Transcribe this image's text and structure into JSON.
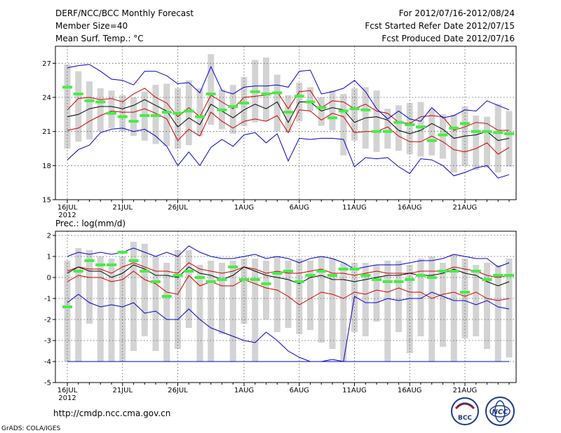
{
  "header": {
    "title": "DERF/NCC/BCC Monthly Forecast",
    "member_size": "Member Size=40",
    "variable": "Mean Surf. Temp.: °C",
    "period": "For 2012/07/16-2012/08/24",
    "fcst_started": "Fcst Started Refer Date 2012/07/15",
    "fcst_produced": "Fcst Produced Date 2012/07/16"
  },
  "footer": {
    "url": "http://cmdp.ncc.cma.gov.cn",
    "grads": "GrADS: COLA/IGES",
    "logo_bcc": "BCC",
    "logo_ncc": "NCC"
  },
  "colors": {
    "box": "#d3d3d3",
    "median": "#000000",
    "band": "#cc0000",
    "range": "#0000cc",
    "obs": "#44ee44",
    "grid": "#555555"
  },
  "chart_data": [
    {
      "type": "line",
      "title": "Mean Surf. Temp.: °C",
      "ylim": [
        15,
        28.5
      ],
      "yticks": [
        15,
        18,
        21,
        24,
        27
      ],
      "xtick_labels": [
        "16JUL",
        "21JUL",
        "26JUL",
        "1AUG",
        "6AUG",
        "11AUG",
        "16AUG",
        "21AUG"
      ],
      "xtick_sub": "2012",
      "xtick_index": [
        0,
        5,
        10,
        16,
        21,
        26,
        31,
        36
      ],
      "days": 40,
      "series": [
        {
          "name": "max",
          "values": [
            18.5,
            19.4,
            19.8,
            20.9,
            21.2,
            21.3,
            21.0,
            21.2,
            20.6,
            19.7,
            18.0,
            19.2,
            18.0,
            19.6,
            20.3,
            19.7,
            20.7,
            20.9,
            20.0,
            20.8,
            18.4,
            20.4,
            20.3,
            20.4,
            20.4,
            20.3,
            17.9,
            18.7,
            18.6,
            18.7,
            17.9,
            17.3,
            18.6,
            18.5,
            18.0,
            17.1,
            17.4,
            17.8,
            18.0,
            16.9,
            17.2
          ]
        },
        {
          "name": "p_low",
          "values": [
            21.1,
            21.3,
            21.9,
            22.4,
            22.8,
            22.7,
            22.7,
            23.0,
            22.6,
            22.1,
            20.2,
            21.2,
            20.6,
            22.7,
            21.9,
            21.3,
            21.9,
            22.1,
            21.9,
            22.4,
            20.9,
            22.9,
            22.8,
            22.0,
            22.6,
            22.3,
            20.9,
            21.0,
            21.0,
            21.4,
            20.6,
            20.1,
            20.1,
            20.6,
            20.1,
            19.4,
            19.2,
            19.5,
            20.0,
            19.0,
            19.6
          ]
        },
        {
          "name": "median",
          "values": [
            22.3,
            22.5,
            23.0,
            23.2,
            23.2,
            23.0,
            23.3,
            23.8,
            23.3,
            22.8,
            21.4,
            22.2,
            21.6,
            23.4,
            22.8,
            22.2,
            22.9,
            23.4,
            23.0,
            23.6,
            21.8,
            23.6,
            23.6,
            22.8,
            23.1,
            22.9,
            21.8,
            22.2,
            22.3,
            22.0,
            21.1,
            20.8,
            21.1,
            21.7,
            21.2,
            20.4,
            20.6,
            20.7,
            21.0,
            20.2,
            20.4
          ]
        },
        {
          "name": "p_high",
          "values": [
            22.9,
            23.9,
            24.0,
            23.8,
            23.9,
            23.6,
            24.3,
            24.8,
            24.0,
            23.5,
            22.3,
            23.1,
            22.3,
            24.2,
            23.6,
            23.0,
            24.0,
            24.1,
            24.2,
            24.5,
            23.0,
            24.5,
            24.6,
            23.1,
            23.7,
            23.6,
            23.0,
            23.4,
            22.8,
            22.6,
            21.8,
            21.7,
            22.3,
            22.4,
            22.3,
            21.1,
            21.4,
            21.8,
            21.7,
            21.1,
            21.1
          ]
        },
        {
          "name": "min",
          "values": [
            26.6,
            26.8,
            26.9,
            26.3,
            25.6,
            25.5,
            25.1,
            26.3,
            26.3,
            25.9,
            25.2,
            25.3,
            24.4,
            26.7,
            24.6,
            24.3,
            24.9,
            25.0,
            25.0,
            25.1,
            24.9,
            26.3,
            26.4,
            24.3,
            24.5,
            24.8,
            25.5,
            24.5,
            23.0,
            22.1,
            22.8,
            22.1,
            21.9,
            23.1,
            22.2,
            22.4,
            22.9,
            22.8,
            23.7,
            23.3,
            22.9
          ]
        }
      ],
      "boxes": [
        [
          19.5,
          26.9
        ],
        [
          20.1,
          26.3
        ],
        [
          20.3,
          25.4
        ],
        [
          21.0,
          24.8
        ],
        [
          21.3,
          24.6
        ],
        [
          21.0,
          24.2
        ],
        [
          20.6,
          24.0
        ],
        [
          20.2,
          24.5
        ],
        [
          19.9,
          25.1
        ],
        [
          19.7,
          25.2
        ],
        [
          19.5,
          24.8
        ],
        [
          19.8,
          25.5
        ],
        [
          20.6,
          24.8
        ],
        [
          21.6,
          27.8
        ],
        [
          21.2,
          24.7
        ],
        [
          20.8,
          25.1
        ],
        [
          21.5,
          25.8
        ],
        [
          21.8,
          27.3
        ],
        [
          21.9,
          27.5
        ],
        [
          21.0,
          26.0
        ],
        [
          20.9,
          24.2
        ],
        [
          21.9,
          25.3
        ],
        [
          22.8,
          24.9
        ],
        [
          21.5,
          24.0
        ],
        [
          21.1,
          24.6
        ],
        [
          18.9,
          24.3
        ],
        [
          20.2,
          24.8
        ],
        [
          19.5,
          24.9
        ],
        [
          19.2,
          24.6
        ],
        [
          19.5,
          23.0
        ],
        [
          19.3,
          23.3
        ],
        [
          19.0,
          23.5
        ],
        [
          18.8,
          23.6
        ],
        [
          18.9,
          23.0
        ],
        [
          18.6,
          22.5
        ],
        [
          17.4,
          22.5
        ],
        [
          18.0,
          23.2
        ],
        [
          17.6,
          22.4
        ],
        [
          17.8,
          22.3
        ],
        [
          17.4,
          23.4
        ],
        [
          17.9,
          22.8
        ]
      ],
      "observed": [
        24.9,
        24.3,
        23.7,
        23.6,
        22.6,
        22.3,
        21.9,
        22.4,
        22.4,
        22.7,
        22.6,
        22.8,
        22.3,
        24.3,
        22.9,
        23.2,
        23.5,
        24.5,
        24.3,
        24.4,
        22.7,
        24.1,
        23.6,
        23.1,
        22.2,
        22.8,
        23.0,
        22.9,
        21.0,
        21.0,
        21.8,
        21.6,
        21.4,
        20.2,
        20.7,
        21.3,
        21.7,
        21.0,
        21.0,
        20.9,
        20.8
      ]
    },
    {
      "type": "line",
      "title": "Prec.: log(mm/d)",
      "ylim": [
        -5,
        2.2
      ],
      "yticks": [
        -5,
        -4,
        -3,
        -2,
        -1,
        0,
        1,
        2
      ],
      "xtick_labels": [
        "16JUL",
        "21JUL",
        "26JUL",
        "1AUG",
        "6AUG",
        "11AUG",
        "16AUG",
        "21AUG"
      ],
      "xtick_sub": "2012",
      "xtick_index": [
        0,
        5,
        10,
        16,
        21,
        26,
        31,
        36
      ],
      "days": 40,
      "series": [
        {
          "name": "max",
          "values": [
            1.0,
            1.2,
            1.1,
            1.2,
            1.1,
            1.2,
            1.4,
            1.2,
            1.0,
            1.2,
            1.0,
            1.5,
            1.2,
            1.0,
            0.9,
            0.9,
            1.0,
            1.1,
            0.9,
            1.0,
            0.9,
            0.7,
            0.9,
            1.0,
            0.9,
            0.7,
            0.4,
            0.5,
            0.6,
            0.6,
            0.6,
            0.7,
            0.8,
            0.8,
            0.9,
            1.1,
            1.0,
            0.9,
            0.9,
            0.5,
            0.7
          ]
        },
        {
          "name": "p_high",
          "values": [
            0.3,
            0.5,
            0.4,
            0.4,
            0.2,
            0.5,
            0.7,
            0.5,
            0.3,
            0.3,
            0.2,
            0.7,
            0.4,
            0.3,
            0.2,
            0.3,
            0.5,
            0.4,
            0.2,
            0.3,
            0.2,
            0.2,
            0.3,
            0.4,
            0.2,
            0.2,
            0.1,
            0.2,
            0.3,
            0.2,
            0.2,
            0.2,
            0.3,
            0.3,
            0.3,
            0.5,
            0.4,
            0.3,
            0.1,
            0.0,
            0.1
          ]
        },
        {
          "name": "median",
          "values": [
            0.2,
            0.5,
            0.3,
            0.3,
            0.0,
            0.2,
            0.6,
            0.4,
            0.1,
            0.1,
            0.0,
            0.5,
            0.2,
            0.1,
            -0.1,
            0.1,
            0.5,
            0.3,
            0.1,
            0.0,
            -0.1,
            -0.3,
            0.0,
            0.1,
            -0.1,
            -0.1,
            -0.2,
            -0.1,
            0.0,
            0.1,
            0.1,
            0.2,
            0.1,
            0.1,
            0.2,
            0.4,
            0.2,
            0.1,
            -0.2,
            -0.4,
            -0.2
          ]
        },
        {
          "name": "p_low",
          "values": [
            -0.2,
            0.1,
            0.0,
            0.0,
            -0.2,
            -0.1,
            0.3,
            -0.1,
            -0.3,
            -0.7,
            -0.8,
            0.1,
            -0.4,
            -0.2,
            -0.4,
            -0.4,
            -0.1,
            -0.3,
            -0.5,
            -0.6,
            -0.9,
            -1.3,
            -1.0,
            -0.7,
            -0.8,
            -1.0,
            -0.7,
            -0.8,
            -0.6,
            -0.7,
            -0.5,
            -0.7,
            -0.7,
            -1.0,
            -0.8,
            -0.7,
            -0.9,
            -0.7,
            -1.0,
            -1.1,
            -1.0
          ]
        },
        {
          "name": "min",
          "values": [
            -1.2,
            -0.8,
            -1.2,
            -1.4,
            -1.3,
            -1.4,
            -1.2,
            -1.7,
            -1.6,
            -2.0,
            -2.0,
            -1.5,
            -2.0,
            -2.4,
            -2.6,
            -2.8,
            -3.0,
            -3.1,
            -2.6,
            -3.0,
            -3.5,
            -3.8,
            -4.0,
            -4.0,
            -3.9,
            -4.0,
            -0.9,
            -1.2,
            -1.2,
            -1.0,
            -1.1,
            -1.0,
            -1.0,
            -0.7,
            -0.9,
            -1.1,
            -1.1,
            -1.3,
            -1.1,
            -1.4,
            -1.5
          ]
        },
        {
          "name": "floor",
          "values": [
            -4.0,
            -4.0,
            -4.0,
            -4.0,
            -4.0,
            -4.0,
            -4.0,
            -4.0,
            -4.0,
            -4.0,
            -4.0,
            -4.0,
            -4.0,
            -4.0,
            -4.0,
            -4.0,
            -4.0,
            -4.0,
            -4.0,
            -4.0,
            -4.0,
            -4.0,
            -4.0,
            -4.0,
            -4.0,
            -4.0,
            -4.0,
            -4.0,
            -4.0,
            -4.0,
            -4.0,
            -4.0,
            -4.0,
            -4.0,
            -4.0,
            -4.0,
            -4.0,
            -4.0,
            -4.0,
            -4.0,
            -4.0
          ]
        }
      ],
      "boxes": [
        [
          -4.0,
          0.8
        ],
        [
          -4.0,
          1.4
        ],
        [
          -2.2,
          1.3
        ],
        [
          -4.0,
          1.0
        ],
        [
          -4.0,
          0.9
        ],
        [
          -4.0,
          1.0
        ],
        [
          -3.5,
          1.7
        ],
        [
          -2.8,
          1.6
        ],
        [
          -3.5,
          1.0
        ],
        [
          -4.0,
          0.7
        ],
        [
          -3.4,
          1.3
        ],
        [
          -2.4,
          1.3
        ],
        [
          -4.0,
          0.6
        ],
        [
          -4.0,
          0.8
        ],
        [
          -2.7,
          0.7
        ],
        [
          -4.0,
          0.8
        ],
        [
          -2.2,
          0.9
        ],
        [
          -4.0,
          0.9
        ],
        [
          -2.0,
          0.8
        ],
        [
          -2.6,
          1.0
        ],
        [
          -2.4,
          0.8
        ],
        [
          -2.7,
          0.9
        ],
        [
          -2.5,
          0.8
        ],
        [
          -3.1,
          1.0
        ],
        [
          -3.4,
          0.9
        ],
        [
          -4.0,
          0.7
        ],
        [
          -2.6,
          0.7
        ],
        [
          -2.8,
          0.7
        ],
        [
          -2.1,
          0.6
        ],
        [
          -4.0,
          0.8
        ],
        [
          -2.6,
          0.8
        ],
        [
          -3.6,
          0.6
        ],
        [
          -2.8,
          0.9
        ],
        [
          -4.0,
          1.0
        ],
        [
          -3.3,
          0.7
        ],
        [
          -4.0,
          1.1
        ],
        [
          -2.9,
          0.9
        ],
        [
          -2.8,
          0.6
        ],
        [
          -3.4,
          0.7
        ],
        [
          -4.0,
          0.6
        ],
        [
          -3.8,
          0.9
        ]
      ],
      "observed": [
        -1.4,
        0.3,
        0.8,
        0.6,
        0.6,
        1.2,
        0.8,
        0.3,
        -0.2,
        -0.9,
        0.1,
        0.3,
        0.0,
        -0.2,
        -0.1,
        0.5,
        -0.1,
        -0.1,
        -0.3,
        0.2,
        0.3,
        -0.2,
        0.1,
        0.3,
        0.1,
        0.4,
        0.4,
        0.1,
        -0.1,
        -0.2,
        -0.2,
        -0.1,
        0.1,
        0.0,
        0.3,
        0.3,
        -0.7,
        0.3,
        -0.1,
        0.1,
        0.1
      ]
    }
  ]
}
